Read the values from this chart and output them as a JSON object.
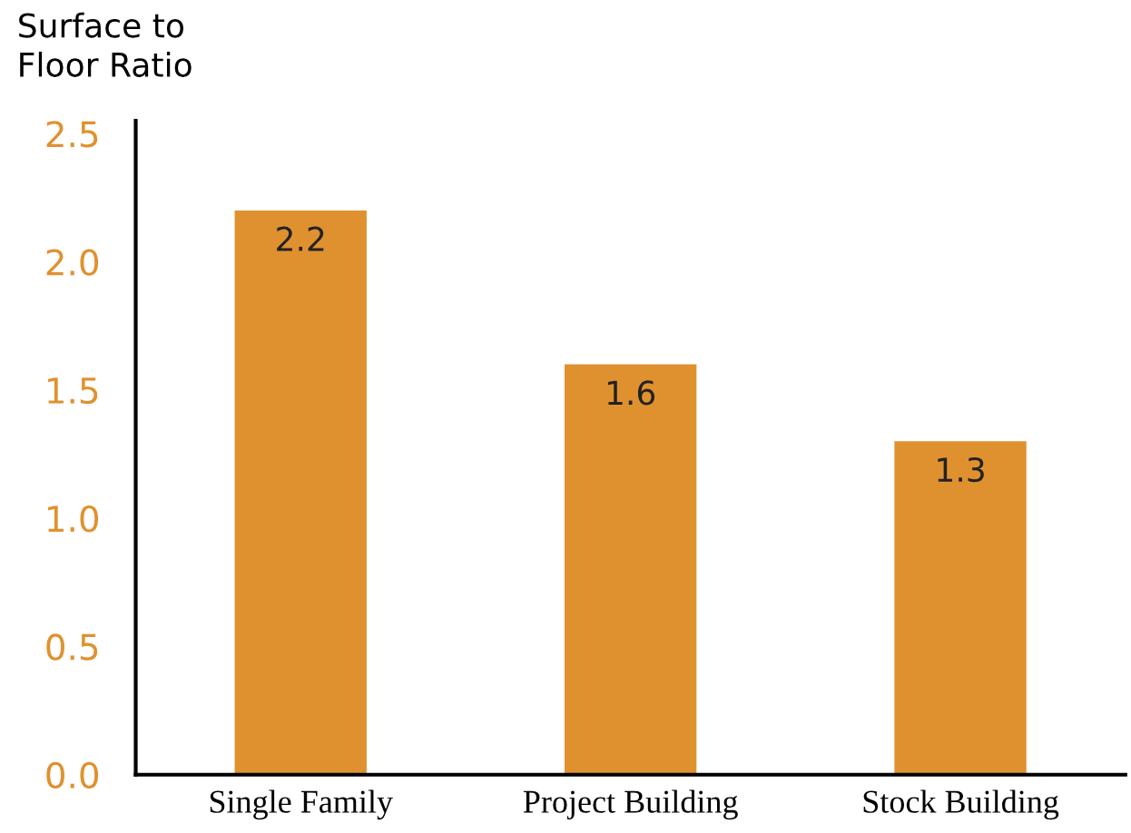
{
  "chart_data": {
    "type": "bar",
    "ylabel": "Surface to\nFloor Ratio",
    "categories": [
      "Single Family",
      "Project Building",
      "Stock Building"
    ],
    "values": [
      2.2,
      1.6,
      1.3
    ],
    "color": "#e0912f",
    "ylim": [
      0,
      2.55
    ],
    "yticks": [
      {
        "value": 0,
        "label": "0.0"
      },
      {
        "value": 0.5,
        "label": "0.5"
      },
      {
        "value": 1,
        "label": "1.0"
      },
      {
        "value": 1.5,
        "label": "1.5"
      },
      {
        "value": 2,
        "label": "2.0"
      },
      {
        "value": 2.5,
        "label": "2.5"
      }
    ],
    "data_labels": true,
    "grid": false,
    "legend": false
  }
}
